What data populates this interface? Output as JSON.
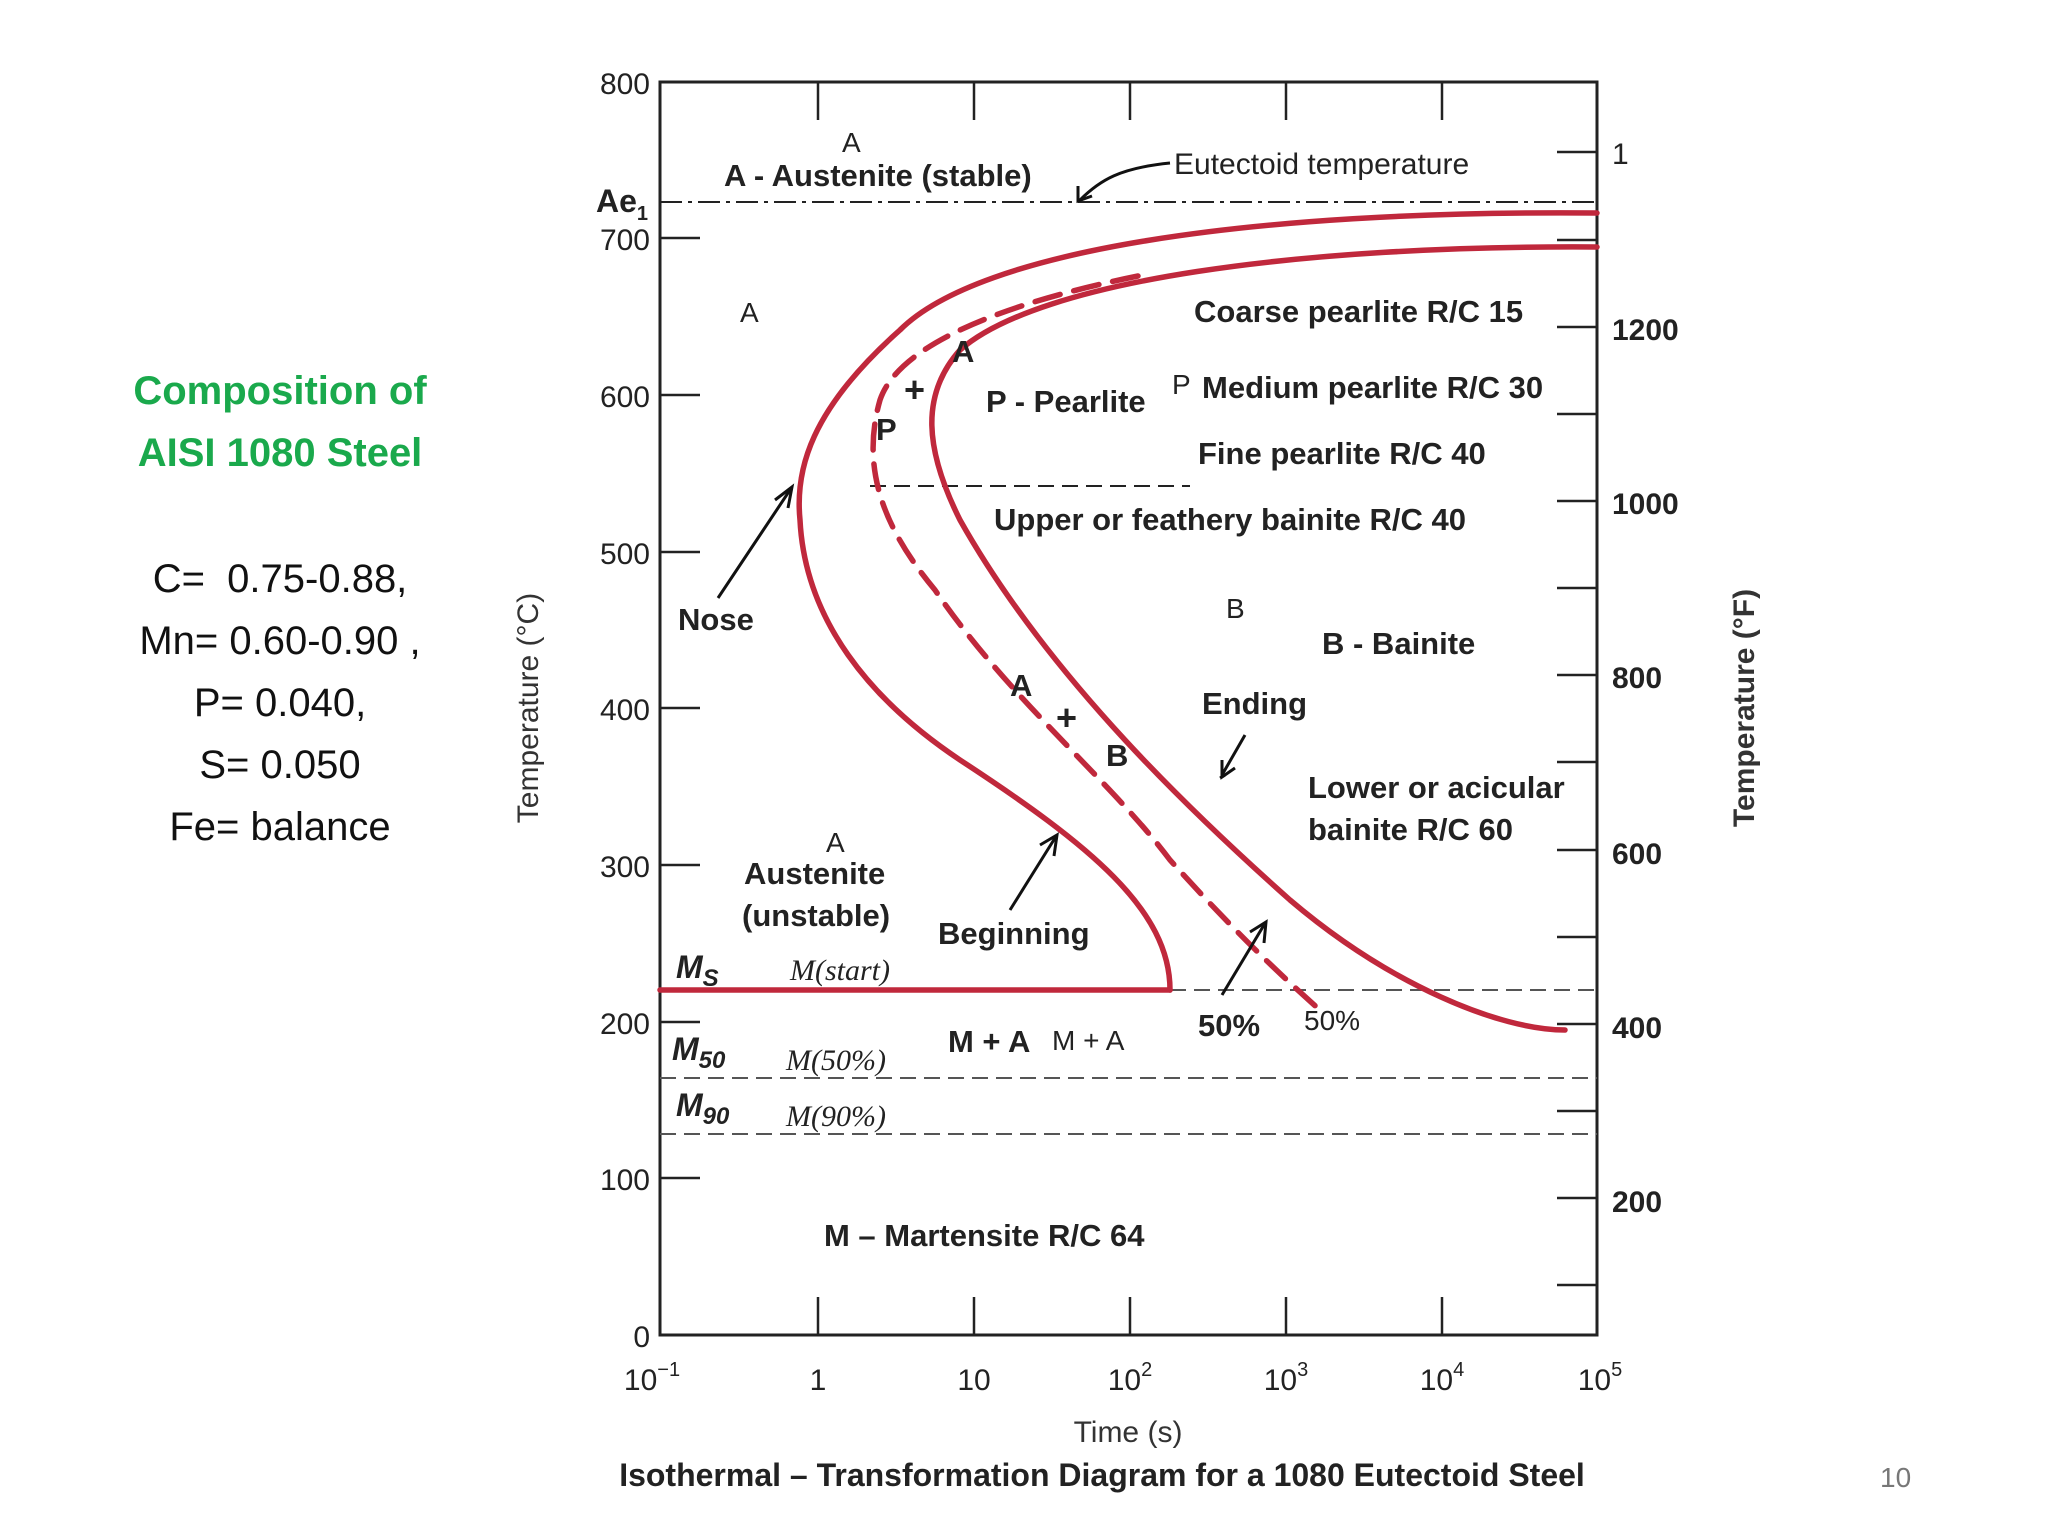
{
  "sidebar": {
    "title_line1": "Composition of",
    "title_line2": "AISI 1080 Steel",
    "composition": [
      "C=  0.75-0.88,",
      "Mn= 0.60-0.90 ,",
      "P= 0.040,",
      "S= 0.050",
      "Fe= balance"
    ]
  },
  "slide_number": "10",
  "diagram": {
    "caption": "Isothermal – Transformation Diagram for a 1080 Eutectoid Steel",
    "x_axis": {
      "label": "Time (s)",
      "ticks": [
        {
          "base": "10",
          "exp": "−1"
        },
        {
          "base": "1",
          "exp": ""
        },
        {
          "base": "10",
          "exp": ""
        },
        {
          "base": "10",
          "exp": "2"
        },
        {
          "base": "10",
          "exp": "3"
        },
        {
          "base": "10",
          "exp": "4"
        },
        {
          "base": "10",
          "exp": "5"
        }
      ]
    },
    "y_left": {
      "label": "Temperature (°C)",
      "ticks": [
        "800",
        "700",
        "600",
        "500",
        "400",
        "300",
        "200",
        "100",
        "0"
      ]
    },
    "y_right": {
      "label": "Temperature (°F)",
      "ticks": [
        "1",
        "1200",
        "1000",
        "800",
        "600",
        "400",
        "200"
      ]
    },
    "lines": {
      "ae1": "Ae",
      "ae1_sub": "1",
      "ms": "M",
      "ms_sub": "S",
      "m50": "M",
      "m50_sub": "50",
      "m90": "M",
      "m90_sub": "90"
    },
    "labels": {
      "a_top": "A",
      "austenite_stable": "A - Austenite (stable)",
      "eutectoid": "Eutectoid temperature",
      "a_left": "A",
      "coarse": "Coarse pearlite R/C 15",
      "p_small": "P",
      "medium": "Medium pearlite R/C 30",
      "fine": "Fine pearlite R/C 40",
      "p_pearlite": "P - Pearlite",
      "a_curve_top": "A",
      "p_curve_top": "P",
      "plus": "+",
      "upper_bainite": "Upper or feathery bainite R/C 40",
      "nose": "Nose",
      "b_small": "B",
      "b_bainite": "B - Bainite",
      "ending": "Ending",
      "a_curve_mid": "A",
      "b_curve_mid": "B",
      "lower1": "Lower or acicular",
      "lower2": "bainite R/C 60",
      "a_unstable": "A",
      "austenite_unstable1": "Austenite",
      "austenite_unstable2": "(unstable)",
      "beginning": "Beginning",
      "m_start": "M(start)",
      "m_plus_a": "M + A",
      "m_plus_a_small": "M + A",
      "fifty_bold": "50%",
      "fifty_light": "50%",
      "m50_text": "M(50%)",
      "m90_text": "M(90%)",
      "martensite": "M – Martensite R/C 64"
    },
    "colors": {
      "curve": "#c0283c",
      "frame": "#222222",
      "dashed": "#555555"
    }
  }
}
